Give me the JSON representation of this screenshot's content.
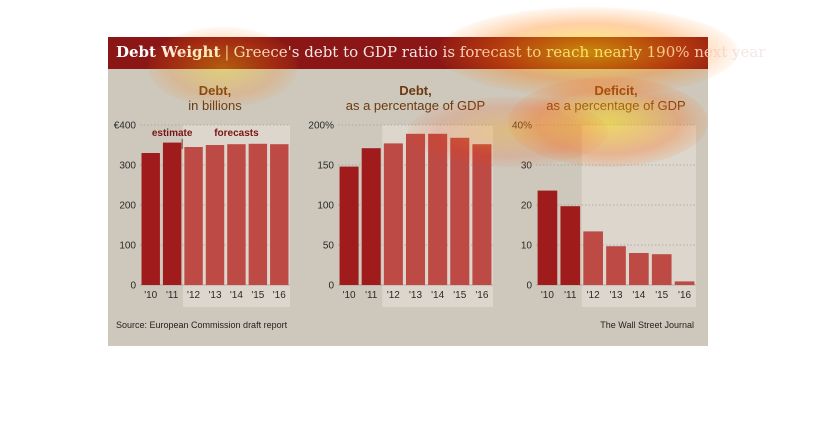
{
  "header": {
    "title": "Debt Weight",
    "separator": "|",
    "subtitle": "Greece's debt to GDP ratio is forecast to reach nearly 190% next year"
  },
  "footer": {
    "source": "Source: European Commission draft report",
    "credit": "The Wall Street Journal"
  },
  "colors": {
    "actual_bar": "#a01c1c",
    "forecast_bar": "#bd4a44",
    "forecast_band": "#dcd6cc",
    "background": "#cdc8bb"
  },
  "chart_data": [
    {
      "type": "bar",
      "title_line1": "Debt,",
      "title_line2": "in billions",
      "categories": [
        "'10",
        "'11",
        "'12",
        "'13",
        "'14",
        "'15",
        "'16"
      ],
      "values": [
        330,
        356,
        345,
        350,
        352,
        353,
        352
      ],
      "forecast_from_index": 2,
      "ylim": [
        0,
        400
      ],
      "yticks": [
        0,
        100,
        200,
        300,
        400
      ],
      "ytick_labels": [
        "0",
        "100",
        "200",
        "300",
        "€400"
      ],
      "annotations": [
        {
          "text": "estimate",
          "category_index": 1
        },
        {
          "text": "forecasts",
          "category_index": 4
        }
      ],
      "grid": true
    },
    {
      "type": "bar",
      "title_line1": "Debt,",
      "title_line2": "as a percentage of GDP",
      "categories": [
        "'10",
        "'11",
        "'12",
        "'13",
        "'14",
        "'15",
        "'16"
      ],
      "values": [
        148,
        171,
        177,
        189,
        189,
        184,
        176
      ],
      "forecast_from_index": 2,
      "ylim": [
        0,
        200
      ],
      "yticks": [
        0,
        50,
        100,
        150,
        200
      ],
      "ytick_labels": [
        "0",
        "50",
        "100",
        "150",
        "200%"
      ],
      "grid": true
    },
    {
      "type": "bar",
      "title_line1": "Deficit,",
      "title_line2": "as a percentage of GDP",
      "categories": [
        "'10",
        "'11",
        "'12",
        "'13",
        "'14",
        "'15",
        "'16"
      ],
      "values": [
        23.6,
        19.7,
        13.4,
        9.7,
        8.0,
        7.7,
        0.9
      ],
      "forecast_from_index": 2,
      "ylim": [
        0,
        40
      ],
      "yticks": [
        0,
        10,
        20,
        30,
        40
      ],
      "ytick_labels": [
        "0",
        "10",
        "20",
        "30",
        "40%"
      ],
      "grid": true
    }
  ]
}
